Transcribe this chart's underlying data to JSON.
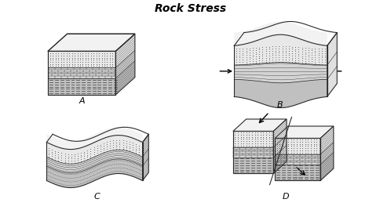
{
  "title": "Rock Stress",
  "labels": [
    "A",
    "B",
    "C",
    "D"
  ],
  "background_color": "#ffffff",
  "line_color": "#2a2a2a",
  "dot_color": "#e8e8e8",
  "brick_color": "#d4d4d4",
  "dash_color": "#c0c0c0",
  "top_color": "#f2f2f2",
  "side_color": "#e0e0e0",
  "title_fontsize": 10
}
